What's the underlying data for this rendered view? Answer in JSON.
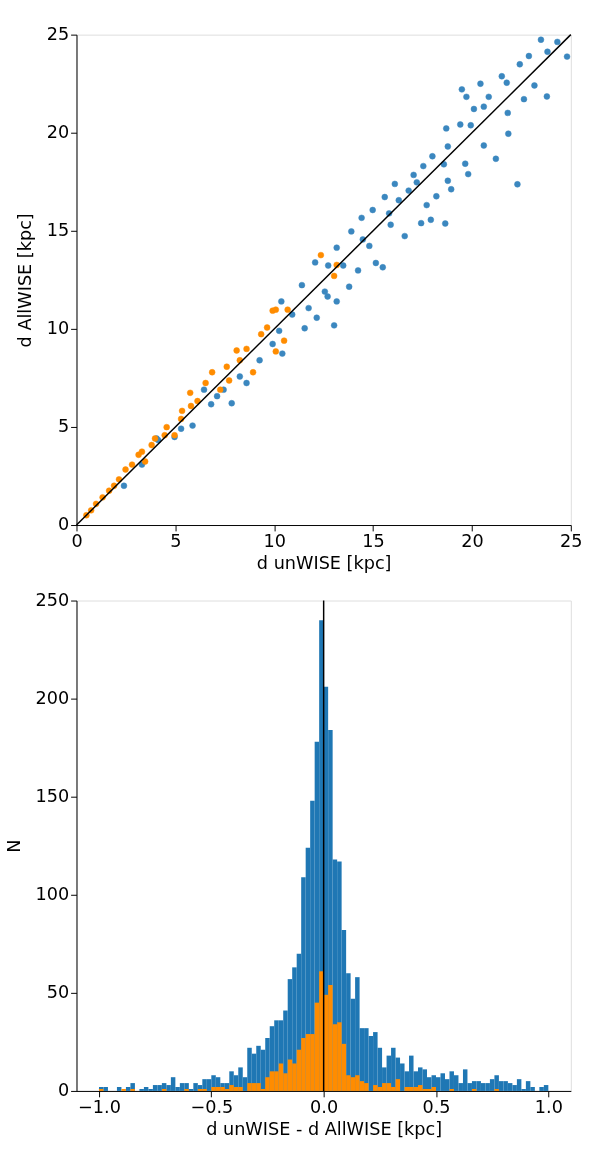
{
  "chart_data": [
    {
      "type": "scatter",
      "xlabel": "d unWISE [kpc]",
      "ylabel": "d AllWISE [kpc]",
      "xlim": [
        0,
        25
      ],
      "ylim": [
        0,
        25
      ],
      "xticks": [
        0,
        5,
        10,
        15,
        20,
        25
      ],
      "yticks": [
        0,
        5,
        10,
        15,
        20,
        25
      ],
      "marker": "circle",
      "series": [
        {
          "color": "#3b87bf",
          "x": [
            12.07,
            12.73,
            12.15,
            11.54,
            10.36,
            10.41,
            7.85,
            8.6,
            6.81,
            5.87,
            4.05,
            2.4,
            4.96,
            6.45,
            9.26,
            11.4,
            12.56,
            10.91,
            9.92,
            8.26,
            7.44,
            4.13,
            3.31,
            5.29,
            10.25,
            11.74,
            7.11,
            23.49,
            24.32,
            24.81,
            23.82,
            22.88,
            22.42,
            21.51,
            21.76,
            20.43,
            19.49,
            19.72,
            20.85,
            22.63,
            23.79,
            23.16,
            20.1,
            20.6,
            21.81,
            19.94,
            18.7,
            19.41,
            21.84,
            20.6,
            21.21,
            18.78,
            18.0,
            18.58,
            19.66,
            19.81,
            22.3,
            17.54,
            17.05,
            16.1,
            18.78,
            18.95,
            18.2,
            17.71,
            17.43,
            17.92,
            18.65,
            15.59,
            14.98,
            14.42,
            16.6,
            15.89,
            13.9,
            15.49,
            15.14,
            14.24,
            13.16,
            13.79,
            13.16,
            13.03,
            12.7,
            16.8,
            16.3,
            14.48,
            13.49,
            14.81,
            17.21,
            15.81
          ],
          "values": [
            13.39,
            13.23,
            10.57,
            10.03,
            11.4,
            8.74,
            6.21,
            7.24,
            6.16,
            5.07,
            4.41,
            2.0,
            4.49,
            6.9,
            8.4,
            12.23,
            11.9,
            10.73,
            9.23,
            7.57,
            6.9,
            4.33,
            3.08,
            4.91,
            9.9,
            11.06,
            6.57,
            24.74,
            24.63,
            23.88,
            24.13,
            23.91,
            23.49,
            22.88,
            22.55,
            22.5,
            22.21,
            21.83,
            21.83,
            21.71,
            21.85,
            22.41,
            21.21,
            21.33,
            21.01,
            20.38,
            20.22,
            20.42,
            19.95,
            19.35,
            18.67,
            19.3,
            18.8,
            18.39,
            18.42,
            17.89,
            17.37,
            18.3,
            17.85,
            17.39,
            17.55,
            17.12,
            16.76,
            16.31,
            15.39,
            15.56,
            15.37,
            16.72,
            16.06,
            15.66,
            14.73,
            15.31,
            14.97,
            13.14,
            13.36,
            12.98,
            14.14,
            12.15,
            11.4,
            10.18,
            11.65,
            17.05,
            16.56,
            14.56,
            13.23,
            14.23,
            17.47,
            15.89
          ]
        },
        {
          "color": "#ff8c00",
          "x": [
            12.36,
            9.92,
            10.08,
            10.68,
            10.5,
            10.08,
            9.64,
            8.1,
            8.26,
            8.93,
            6.86,
            7.72,
            7.27,
            5.75,
            6.12,
            5.34,
            4.56,
            4.96,
            3.14,
            3.47,
            2.48,
            2.15,
            1.65,
            0.99,
            0.5,
            9.34,
            8.6,
            7.6,
            6.53,
            5.79,
            3.97,
            3.8,
            2.81,
            1.9,
            1.32,
            0.74,
            4.46,
            5.29,
            3.31,
            13.16,
            13.03
          ],
          "values": [
            13.76,
            10.93,
            10.98,
            10.98,
            9.4,
            8.85,
            10.07,
            8.9,
            8.4,
            7.79,
            7.79,
            7.37,
            6.9,
            6.74,
            6.32,
            5.82,
            4.99,
            4.58,
            3.58,
            3.24,
            2.83,
            2.33,
            1.75,
            1.08,
            0.5,
            9.73,
            8.98,
            8.07,
            7.24,
            6.07,
            4.41,
            4.08,
            3.08,
            2.0,
            1.41,
            0.75,
            4.58,
            5.41,
            3.74,
            13.26,
            12.7
          ]
        },
        {
          "type": "line",
          "marker": "none",
          "color": "#000000",
          "x": [
            0,
            25
          ],
          "values": [
            0,
            25
          ]
        }
      ]
    },
    {
      "type": "histogram",
      "xlabel": "d unWISE - d AllWISE [kpc]",
      "ylabel": "N",
      "xlim": [
        -1.1,
        1.1
      ],
      "ylim": [
        0,
        250
      ],
      "xticks": [
        {
          "value": -1,
          "label": "−1.0"
        },
        {
          "value": -0.5,
          "label": "−0.5"
        },
        {
          "value": 0,
          "label": "0.0"
        },
        {
          "value": 0.5,
          "label": "0.5"
        },
        {
          "value": 1,
          "label": "1.0"
        }
      ],
      "yticks": [
        0,
        50,
        100,
        150,
        200,
        250
      ],
      "bins": [
        -1,
        -0.98,
        -0.96,
        -0.94,
        -0.92,
        -0.9,
        -0.88,
        -0.86,
        -0.84,
        -0.82,
        -0.8,
        -0.78,
        -0.76,
        -0.74,
        -0.72,
        -0.7,
        -0.68,
        -0.66,
        -0.64,
        -0.62,
        -0.6,
        -0.58,
        -0.56,
        -0.54,
        -0.52,
        -0.5,
        -0.48,
        -0.46,
        -0.44,
        -0.42,
        -0.4,
        -0.38,
        -0.36,
        -0.34,
        -0.32,
        -0.3,
        -0.28,
        -0.26,
        -0.24,
        -0.22,
        -0.2,
        -0.18,
        -0.16,
        -0.14,
        -0.12,
        -0.1,
        -0.08,
        -0.06,
        -0.04,
        -0.02,
        0,
        0.02,
        0.04,
        0.06,
        0.08,
        0.1,
        0.12,
        0.14,
        0.16,
        0.18,
        0.2,
        0.22,
        0.24,
        0.26,
        0.28,
        0.3,
        0.32,
        0.34,
        0.36,
        0.38,
        0.4,
        0.42,
        0.44,
        0.46,
        0.48,
        0.5,
        0.52,
        0.54,
        0.56,
        0.58,
        0.6,
        0.62,
        0.64,
        0.66,
        0.68,
        0.7,
        0.72,
        0.74,
        0.76,
        0.78,
        0.8,
        0.82,
        0.84,
        0.86,
        0.88,
        0.9,
        0.92,
        0.94,
        0.96,
        0.98,
        1
      ],
      "series": [
        {
          "color": "#1f77b4",
          "values": [
            2,
            2,
            0,
            0,
            2,
            null,
            2,
            4,
            0,
            1,
            2,
            1,
            3,
            3,
            4,
            3,
            7,
            2,
            4,
            4,
            1,
            4,
            3,
            6,
            6,
            8,
            7,
            4,
            4,
            10,
            8,
            12,
            7,
            22,
            19,
            23,
            21,
            27,
            33,
            36,
            36,
            41,
            57,
            63,
            70,
            109,
            124,
            148,
            178,
            240,
            206,
            184,
            118,
            117,
            82,
            60,
            47,
            58,
            32,
            32,
            28,
            30,
            22,
            12,
            18,
            22,
            17,
            14,
            10,
            18,
            10,
            12,
            11,
            7,
            8,
            7,
            9,
            6,
            10,
            8,
            4,
            11,
            4,
            5,
            5,
            4,
            4,
            6,
            8,
            5,
            5,
            4,
            3,
            6,
            1,
            5,
            2,
            0,
            2,
            3
          ]
        },
        {
          "color": "#ff8c00",
          "values": [
            1,
            0,
            0,
            0,
            0,
            1,
            0,
            1,
            0,
            0,
            0,
            0,
            0,
            0,
            1,
            0,
            0,
            0,
            0,
            1,
            0,
            0,
            1,
            1,
            0,
            2,
            2,
            2,
            1,
            3,
            2,
            2,
            0,
            4,
            4,
            4,
            1,
            7,
            10,
            10,
            14,
            9,
            16,
            14,
            21,
            27,
            29,
            29,
            45,
            61,
            49,
            54,
            34,
            35,
            24,
            8,
            7,
            8,
            5,
            4,
            0,
            3,
            2,
            4,
            4,
            2,
            6,
            0,
            2,
            2,
            2,
            3,
            1,
            1,
            2,
            0,
            0,
            0,
            1,
            0,
            0,
            0,
            0,
            1,
            0,
            0,
            0,
            0,
            1,
            0,
            0,
            0,
            0,
            0,
            0,
            0,
            0,
            0,
            0,
            0
          ]
        }
      ],
      "ref_lines": [
        {
          "axis": "x",
          "value": 0,
          "color": "#000000"
        }
      ]
    }
  ]
}
